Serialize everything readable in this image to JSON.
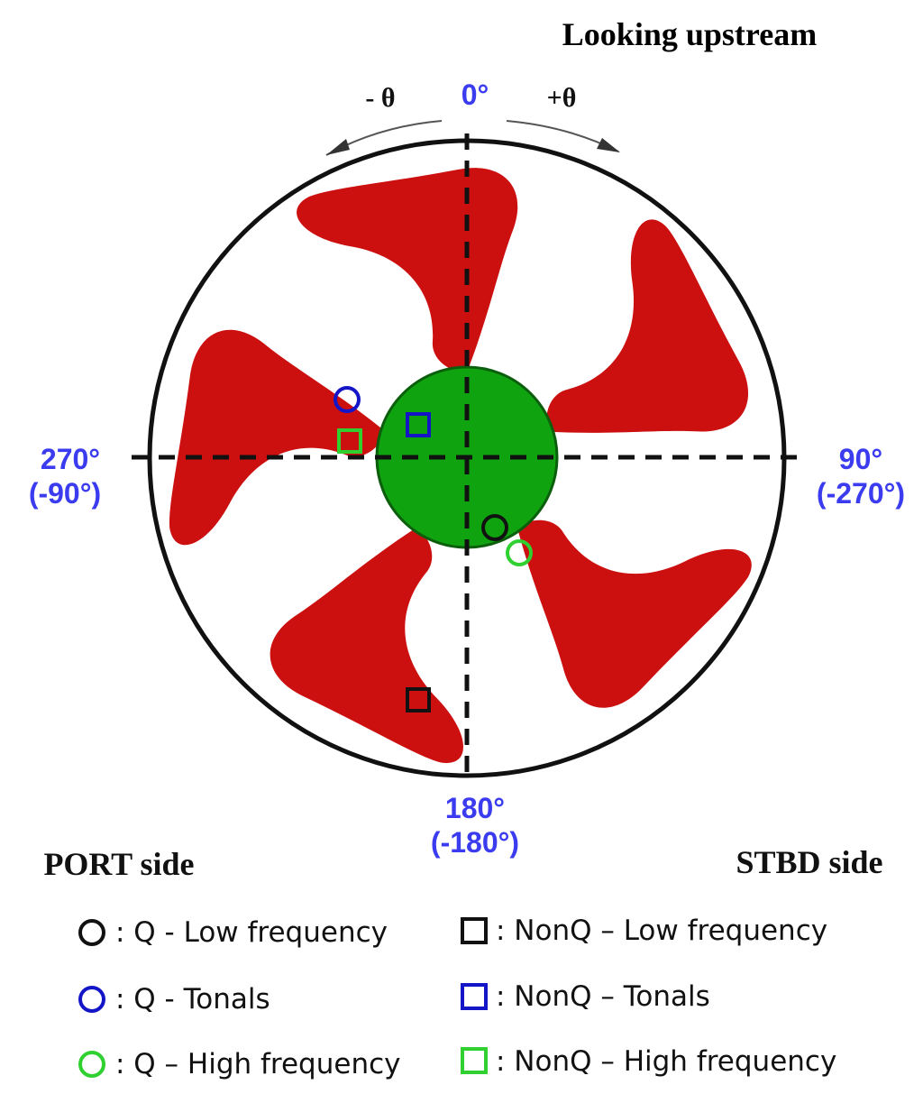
{
  "title": "Looking upstream",
  "rotation": {
    "minus_label": "- θ",
    "plus_label": "+θ"
  },
  "angles": {
    "top": "0°",
    "right_primary": "90°",
    "right_secondary": "(-270°)",
    "bottom_primary": "180°",
    "bottom_secondary": "(-180°)",
    "left_primary": "270°",
    "left_secondary": "(-90°)"
  },
  "sides": {
    "port": "PORT side",
    "stbd": "STBD side"
  },
  "colors": {
    "blade": "#c40c0c",
    "hub": "#0fa30f",
    "angle_text": "#3b3bf0",
    "black": "#111111",
    "blue": "#1515c8",
    "green": "#2fd02f"
  },
  "legend": [
    {
      "shape": "circle",
      "color": "black",
      "label": ": Q - Low frequency"
    },
    {
      "shape": "circle",
      "color": "blue",
      "label": ": Q - Tonals"
    },
    {
      "shape": "circle",
      "color": "green",
      "label": ": Q – High frequency"
    },
    {
      "shape": "square",
      "color": "black",
      "label": ": NonQ – Low frequency"
    },
    {
      "shape": "square",
      "color": "blue",
      "label": ": NonQ – Tonals"
    },
    {
      "shape": "square",
      "color": "green",
      "label": ": NonQ – High frequency"
    }
  ]
}
